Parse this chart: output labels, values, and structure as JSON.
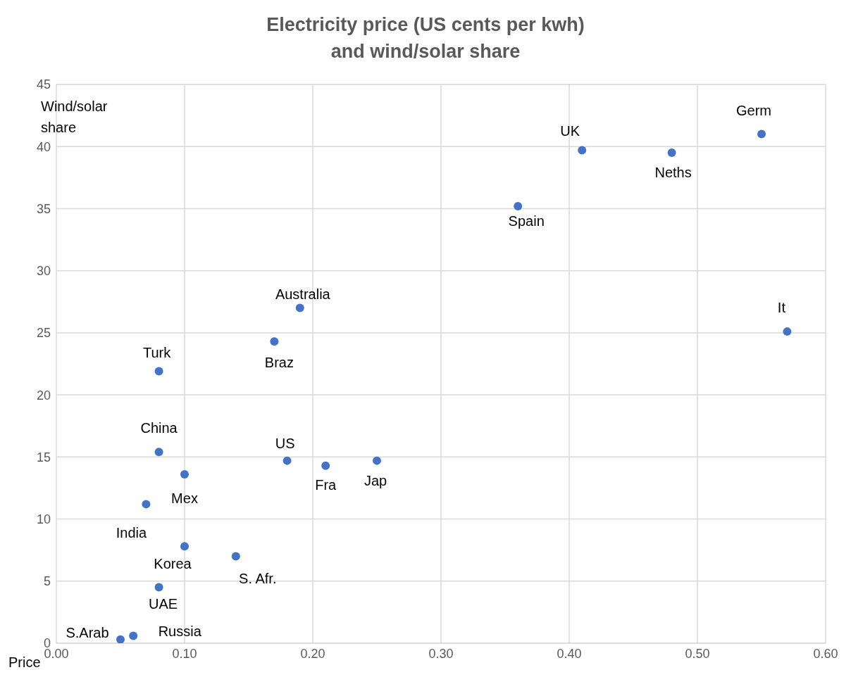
{
  "chart_data": {
    "type": "scatter",
    "title": "Electricity price (US cents per kwh)\nand wind/solar share",
    "xlabel": "Price",
    "ylabel": "Wind/solar share",
    "x": [
      0.05,
      0.06,
      0.08,
      0.1,
      0.14,
      0.07,
      0.1,
      0.08,
      0.08,
      0.17,
      0.19,
      0.18,
      0.21,
      0.25,
      0.36,
      0.41,
      0.48,
      0.55,
      0.57
    ],
    "values": [
      0.3,
      0.6,
      4.5,
      7.8,
      7.0,
      11.2,
      13.6,
      15.4,
      21.9,
      24.3,
      27.0,
      14.7,
      14.3,
      14.7,
      35.2,
      39.7,
      39.5,
      41.0,
      25.1
    ],
    "color": "#4472c4",
    "marker": "circle",
    "grid": true,
    "xlim": [
      0,
      0.6
    ],
    "xticks": [
      {
        "value": 0,
        "label": "0.00"
      },
      {
        "value": 0.1,
        "label": "0.10"
      },
      {
        "value": 0.2,
        "label": "0.20"
      },
      {
        "value": 0.3,
        "label": "0.30"
      },
      {
        "value": 0.4,
        "label": "0.40"
      },
      {
        "value": 0.5,
        "label": "0.50"
      },
      {
        "value": 0.6,
        "label": "0.60"
      }
    ],
    "ylim": [
      0,
      45
    ],
    "yticks": [
      0,
      5,
      10,
      15,
      20,
      25,
      30,
      35,
      40,
      45
    ],
    "annotations": [
      {
        "text": "S.Arab",
        "x": 0.05,
        "y": 0.3
      },
      {
        "text": "Russia",
        "x": 0.06,
        "y": 0.6
      },
      {
        "text": "UAE",
        "x": 0.08,
        "y": 4.5
      },
      {
        "text": "Korea",
        "x": 0.1,
        "y": 7.8
      },
      {
        "text": "S. Afr.",
        "x": 0.14,
        "y": 7.0
      },
      {
        "text": "India",
        "x": 0.07,
        "y": 11.2
      },
      {
        "text": "Mex",
        "x": 0.1,
        "y": 13.6
      },
      {
        "text": "China",
        "x": 0.08,
        "y": 15.4
      },
      {
        "text": "Turk",
        "x": 0.08,
        "y": 21.9
      },
      {
        "text": "Braz",
        "x": 0.17,
        "y": 24.3
      },
      {
        "text": "Australia",
        "x": 0.19,
        "y": 27.0
      },
      {
        "text": "US",
        "x": 0.18,
        "y": 14.7
      },
      {
        "text": "Fra",
        "x": 0.21,
        "y": 14.3
      },
      {
        "text": "Jap",
        "x": 0.25,
        "y": 14.7
      },
      {
        "text": "Spain",
        "x": 0.36,
        "y": 35.2
      },
      {
        "text": "UK",
        "x": 0.41,
        "y": 39.7
      },
      {
        "text": "Neths",
        "x": 0.48,
        "y": 39.5
      },
      {
        "text": "Germ",
        "x": 0.55,
        "y": 41.0
      },
      {
        "text": "It",
        "x": 0.57,
        "y": 25.1
      }
    ]
  }
}
